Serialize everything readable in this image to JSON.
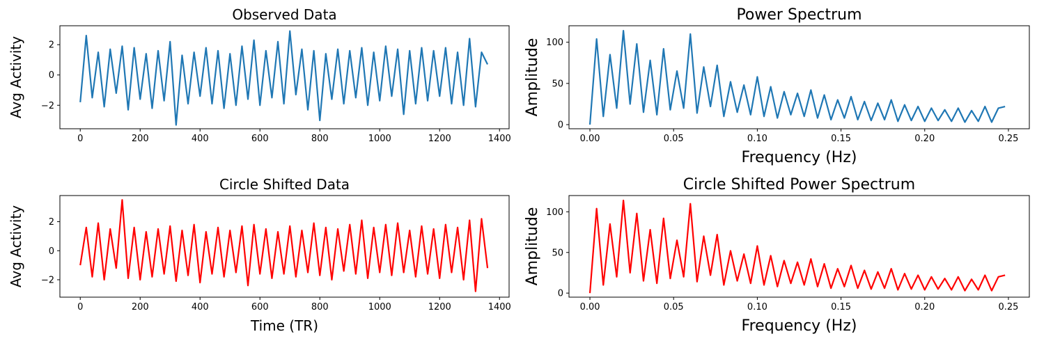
{
  "chart_data": [
    {
      "type": "line",
      "title": "Observed Data",
      "xlabel": "",
      "ylabel": "Avg Activity",
      "xlim": [
        -68,
        1432
      ],
      "ylim": [
        -3.55,
        3.25
      ],
      "xticks": [
        0,
        200,
        400,
        600,
        800,
        1000,
        1200,
        1400
      ],
      "xtick_labels": [
        "0",
        "200",
        "400",
        "600",
        "800",
        "1000",
        "1200",
        "1400"
      ],
      "yticks": [
        -2,
        0,
        2
      ],
      "ytick_labels": [
        "−2",
        "0",
        "2"
      ],
      "grid": false,
      "color": "#1f77b4",
      "series": [
        {
          "x": [
            0,
            20,
            40,
            60,
            80,
            100,
            120,
            140,
            160,
            180,
            200,
            220,
            240,
            260,
            280,
            300,
            320,
            340,
            360,
            380,
            400,
            420,
            440,
            460,
            480,
            500,
            520,
            540,
            560,
            580,
            600,
            620,
            640,
            660,
            680,
            700,
            720,
            740,
            760,
            780,
            800,
            820,
            840,
            860,
            880,
            900,
            920,
            940,
            960,
            980,
            1000,
            1020,
            1040,
            1060,
            1080,
            1100,
            1120,
            1140,
            1160,
            1180,
            1200,
            1220,
            1240,
            1260,
            1280,
            1300,
            1320,
            1340,
            1360
          ],
          "y": [
            -1.8,
            2.6,
            -1.5,
            1.5,
            -2.1,
            1.7,
            -1.2,
            1.9,
            -2.3,
            1.8,
            -1.6,
            1.4,
            -2.2,
            1.6,
            -1.7,
            2.2,
            -3.3,
            1.3,
            -1.9,
            1.5,
            -1.4,
            1.8,
            -1.9,
            1.6,
            -2.2,
            1.4,
            -2.0,
            1.9,
            -1.6,
            2.3,
            -2.0,
            1.6,
            -1.5,
            2.2,
            -1.9,
            2.9,
            -1.3,
            1.7,
            -2.3,
            1.6,
            -3.0,
            1.4,
            -1.6,
            1.7,
            -1.9,
            1.6,
            -1.5,
            1.8,
            -2.0,
            1.5,
            -1.7,
            1.9,
            -1.4,
            1.7,
            -2.6,
            1.6,
            -1.9,
            1.8,
            -1.7,
            1.6,
            -1.4,
            1.8,
            -1.9,
            1.5,
            -2.0,
            2.4,
            -2.1,
            1.5,
            0.7
          ]
        }
      ]
    },
    {
      "type": "line",
      "title": "Power Spectrum",
      "xlabel": "Frequency (Hz)",
      "ylabel": "Amplitude",
      "xlim": [
        -0.0125,
        0.2625
      ],
      "ylim": [
        -5,
        120
      ],
      "xticks": [
        0.0,
        0.05,
        0.1,
        0.15,
        0.2,
        0.25
      ],
      "xtick_labels": [
        "0.00",
        "0.05",
        "0.10",
        "0.15",
        "0.20",
        "0.25"
      ],
      "yticks": [
        0,
        50,
        100
      ],
      "ytick_labels": [
        "0",
        "50",
        "100"
      ],
      "grid": false,
      "color": "#1f77b4",
      "series": [
        {
          "x": [
            0.0,
            0.004,
            0.008,
            0.012,
            0.016,
            0.02,
            0.024,
            0.028,
            0.032,
            0.036,
            0.04,
            0.044,
            0.048,
            0.052,
            0.056,
            0.06,
            0.064,
            0.068,
            0.072,
            0.076,
            0.08,
            0.084,
            0.088,
            0.092,
            0.096,
            0.1,
            0.104,
            0.108,
            0.112,
            0.116,
            0.12,
            0.124,
            0.128,
            0.132,
            0.136,
            0.14,
            0.144,
            0.148,
            0.152,
            0.156,
            0.16,
            0.164,
            0.168,
            0.172,
            0.176,
            0.18,
            0.184,
            0.188,
            0.192,
            0.196,
            0.2,
            0.204,
            0.208,
            0.212,
            0.216,
            0.22,
            0.224,
            0.228,
            0.232,
            0.236,
            0.24,
            0.244,
            0.248
          ],
          "y": [
            0,
            104,
            10,
            85,
            20,
            114,
            25,
            98,
            15,
            78,
            12,
            92,
            18,
            65,
            20,
            110,
            14,
            70,
            22,
            72,
            10,
            52,
            15,
            48,
            12,
            58,
            10,
            46,
            8,
            40,
            12,
            38,
            10,
            42,
            8,
            36,
            6,
            30,
            8,
            34,
            6,
            28,
            5,
            26,
            6,
            30,
            4,
            24,
            5,
            22,
            4,
            20,
            5,
            18,
            4,
            20,
            3,
            17,
            4,
            22,
            3,
            20,
            22
          ]
        }
      ]
    },
    {
      "type": "line",
      "title": "Circle Shifted Data",
      "xlabel": "Time (TR)",
      "ylabel": "Avg Activity",
      "xlim": [
        -68,
        1432
      ],
      "ylim": [
        -3.2,
        3.8
      ],
      "xticks": [
        0,
        200,
        400,
        600,
        800,
        1000,
        1200,
        1400
      ],
      "xtick_labels": [
        "0",
        "200",
        "400",
        "600",
        "800",
        "1000",
        "1200",
        "1400"
      ],
      "yticks": [
        -2,
        0,
        2
      ],
      "ytick_labels": [
        "−2",
        "0",
        "2"
      ],
      "grid": false,
      "color": "#ff0000",
      "series": [
        {
          "x": [
            0,
            20,
            40,
            60,
            80,
            100,
            120,
            140,
            160,
            180,
            200,
            220,
            240,
            260,
            280,
            300,
            320,
            340,
            360,
            380,
            400,
            420,
            440,
            460,
            480,
            500,
            520,
            540,
            560,
            580,
            600,
            620,
            640,
            660,
            680,
            700,
            720,
            740,
            760,
            780,
            800,
            820,
            840,
            860,
            880,
            900,
            920,
            940,
            960,
            980,
            1000,
            1020,
            1040,
            1060,
            1080,
            1100,
            1120,
            1140,
            1160,
            1180,
            1200,
            1220,
            1240,
            1260,
            1280,
            1300,
            1320,
            1340,
            1360
          ],
          "y": [
            -1.0,
            1.6,
            -1.8,
            1.9,
            -2.0,
            1.5,
            -1.2,
            3.5,
            -1.9,
            1.6,
            -2.0,
            1.3,
            -1.8,
            1.5,
            -1.6,
            1.7,
            -2.1,
            1.4,
            -1.7,
            1.8,
            -2.2,
            1.3,
            -1.6,
            1.6,
            -1.8,
            1.4,
            -1.5,
            1.7,
            -2.4,
            1.8,
            -1.6,
            1.5,
            -1.9,
            1.3,
            -1.6,
            1.7,
            -1.8,
            1.4,
            -1.5,
            1.9,
            -1.7,
            1.6,
            -2.0,
            1.5,
            -1.4,
            1.8,
            -1.6,
            2.1,
            -1.9,
            1.6,
            -1.5,
            1.8,
            -1.7,
            1.9,
            -1.5,
            1.4,
            -1.8,
            1.7,
            -1.6,
            1.5,
            -1.9,
            1.8,
            -1.5,
            1.6,
            -2.0,
            2.1,
            -2.8,
            2.2,
            -1.2
          ]
        }
      ]
    },
    {
      "type": "line",
      "title": "Circle Shifted Power Spectrum",
      "xlabel": "Frequency (Hz)",
      "ylabel": "Amplitude",
      "xlim": [
        -0.0125,
        0.2625
      ],
      "ylim": [
        -5,
        120
      ],
      "xticks": [
        0.0,
        0.05,
        0.1,
        0.15,
        0.2,
        0.25
      ],
      "xtick_labels": [
        "0.00",
        "0.05",
        "0.10",
        "0.15",
        "0.20",
        "0.25"
      ],
      "yticks": [
        0,
        50,
        100
      ],
      "ytick_labels": [
        "0",
        "50",
        "100"
      ],
      "grid": false,
      "color": "#ff0000",
      "series": [
        {
          "x": [
            0.0,
            0.004,
            0.008,
            0.012,
            0.016,
            0.02,
            0.024,
            0.028,
            0.032,
            0.036,
            0.04,
            0.044,
            0.048,
            0.052,
            0.056,
            0.06,
            0.064,
            0.068,
            0.072,
            0.076,
            0.08,
            0.084,
            0.088,
            0.092,
            0.096,
            0.1,
            0.104,
            0.108,
            0.112,
            0.116,
            0.12,
            0.124,
            0.128,
            0.132,
            0.136,
            0.14,
            0.144,
            0.148,
            0.152,
            0.156,
            0.16,
            0.164,
            0.168,
            0.172,
            0.176,
            0.18,
            0.184,
            0.188,
            0.192,
            0.196,
            0.2,
            0.204,
            0.208,
            0.212,
            0.216,
            0.22,
            0.224,
            0.228,
            0.232,
            0.236,
            0.24,
            0.244,
            0.248
          ],
          "y": [
            0,
            104,
            10,
            85,
            20,
            114,
            25,
            98,
            15,
            78,
            12,
            92,
            18,
            65,
            20,
            110,
            14,
            70,
            22,
            72,
            10,
            52,
            15,
            48,
            12,
            58,
            10,
            46,
            8,
            40,
            12,
            38,
            10,
            42,
            8,
            36,
            6,
            30,
            8,
            34,
            6,
            28,
            5,
            26,
            6,
            30,
            4,
            24,
            5,
            22,
            4,
            20,
            5,
            18,
            4,
            20,
            3,
            17,
            4,
            22,
            3,
            20,
            22
          ]
        }
      ]
    }
  ]
}
